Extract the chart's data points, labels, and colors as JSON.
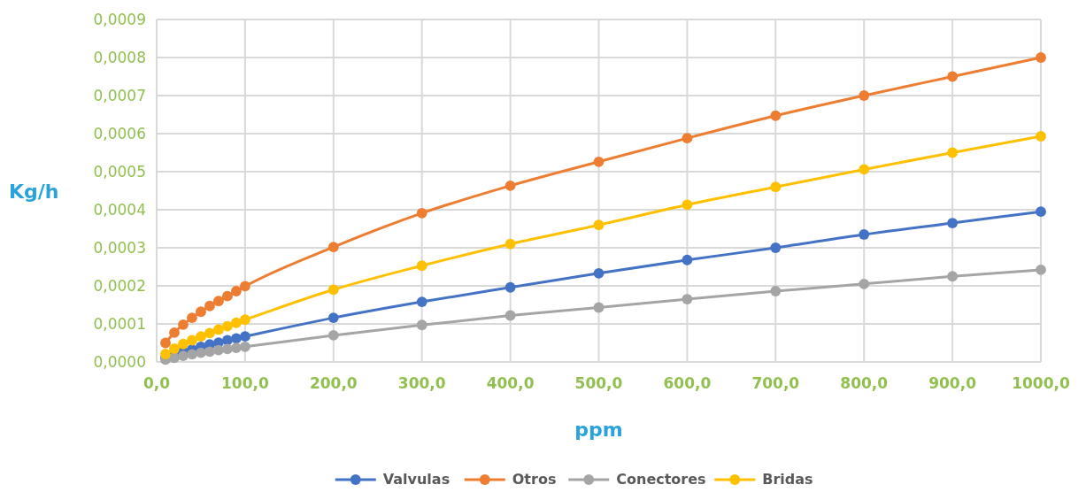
{
  "chart_data": {
    "type": "line",
    "xlabel": "ppm",
    "ylabel": "Kg/h",
    "x": [
      10,
      20,
      30,
      40,
      50,
      60,
      70,
      80,
      90,
      100,
      200,
      300,
      400,
      500,
      600,
      700,
      800,
      900,
      1000
    ],
    "series": [
      {
        "name": "Valvulas",
        "color": "#4472c4",
        "values": [
          1.1e-05,
          2e-05,
          2.7e-05,
          3.3e-05,
          4e-05,
          4.6e-05,
          5.1e-05,
          5.7e-05,
          6.2e-05,
          6.7e-05,
          0.000116,
          0.000158,
          0.000196,
          0.000233,
          0.000268,
          0.0003,
          0.000335,
          0.000365,
          0.000395
        ]
      },
      {
        "name": "Otros",
        "color": "#ed7d31",
        "values": [
          5e-05,
          7.7e-05,
          9.8e-05,
          0.000116,
          0.000132,
          0.000147,
          0.00016,
          0.000173,
          0.000186,
          0.000199,
          0.000302,
          0.000391,
          0.000463,
          0.000526,
          0.000588,
          0.000647,
          0.0007,
          0.00075,
          0.0008
        ]
      },
      {
        "name": "Conectores",
        "color": "#a5a5a5",
        "values": [
          6e-06,
          1.1e-05,
          1.6e-05,
          2e-05,
          2.4e-05,
          2.7e-05,
          3.1e-05,
          3.4e-05,
          3.7e-05,
          4e-05,
          7e-05,
          9.7e-05,
          0.000122,
          0.000143,
          0.000165,
          0.000186,
          0.000205,
          0.000225,
          0.000242
        ]
      },
      {
        "name": "Bridas",
        "color": "#ffc000",
        "values": [
          2.1e-05,
          3.5e-05,
          4.7e-05,
          5.7e-05,
          6.7e-05,
          7.6e-05,
          8.5e-05,
          9.4e-05,
          0.000103,
          0.000111,
          0.00019,
          0.000253,
          0.00031,
          0.00036,
          0.000413,
          0.00046,
          0.000506,
          0.00055,
          0.000593
        ]
      }
    ],
    "xlim": [
      0,
      1000
    ],
    "xticks": [
      {
        "value": 0,
        "label": "0,0"
      },
      {
        "value": 100,
        "label": "100,0"
      },
      {
        "value": 200,
        "label": "200,0"
      },
      {
        "value": 300,
        "label": "300,0"
      },
      {
        "value": 400,
        "label": "400,0"
      },
      {
        "value": 500,
        "label": "500,0"
      },
      {
        "value": 600,
        "label": "600,0"
      },
      {
        "value": 700,
        "label": "700,0"
      },
      {
        "value": 800,
        "label": "800,0"
      },
      {
        "value": 900,
        "label": "900,0"
      },
      {
        "value": 1000,
        "label": "1000,0"
      }
    ],
    "ylim": [
      0,
      0.0009
    ],
    "yticks": [
      {
        "value": 0,
        "label": "0,0000"
      },
      {
        "value": 0.0001,
        "label": "0,0001"
      },
      {
        "value": 0.0002,
        "label": "0,0002"
      },
      {
        "value": 0.0003,
        "label": "0,0003"
      },
      {
        "value": 0.0004,
        "label": "0,0004"
      },
      {
        "value": 0.0005,
        "label": "0,0005"
      },
      {
        "value": 0.0006,
        "label": "0,0006"
      },
      {
        "value": 0.0007,
        "label": "0,0007"
      },
      {
        "value": 0.0008,
        "label": "0,0008"
      },
      {
        "value": 0.0009,
        "label": "0,0009"
      }
    ],
    "grid": true,
    "legend": "bottom",
    "marker": "circle",
    "line_style": "solid"
  }
}
